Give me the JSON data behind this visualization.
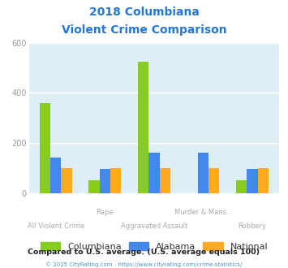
{
  "title_line1": "2018 Columbiana",
  "title_line2": "Violent Crime Comparison",
  "categories": [
    "All Violent Crime",
    "Rape",
    "Aggravated Assault",
    "Murder & Mans...",
    "Robbery"
  ],
  "columbiana": [
    360,
    50,
    525,
    0,
    50
  ],
  "alabama": [
    140,
    97,
    160,
    162,
    97
  ],
  "national": [
    100,
    100,
    100,
    100,
    100
  ],
  "columbiana_color": "#88cc22",
  "alabama_color": "#4488ee",
  "national_color": "#ffaa22",
  "title_color": "#2277dd",
  "plot_bg": "#ddeef5",
  "ylim": [
    0,
    600
  ],
  "yticks": [
    0,
    200,
    400,
    600
  ],
  "footnote": "Compared to U.S. average. (U.S. average equals 100)",
  "copyright": "© 2025 CityRating.com - https://www.cityrating.com/crime-statistics/",
  "legend_labels": [
    "Columbiana",
    "Alabama",
    "National"
  ],
  "label_color": "#aaaaaa",
  "footnote_color": "#222222",
  "copyright_color": "#4499cc"
}
